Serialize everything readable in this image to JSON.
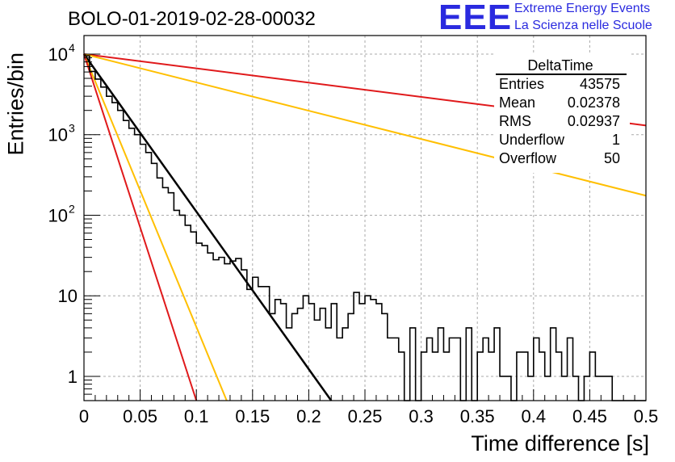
{
  "title": "BOLO-01-2019-02-28-00032",
  "logo": {
    "mark": "EEE",
    "line1": "Extreme Energy Events",
    "line2": "La Scienza nelle Scuole"
  },
  "stats_box": {
    "name": "DeltaTime",
    "rows": [
      {
        "label": "Entries",
        "value": "43575"
      },
      {
        "label": "Mean",
        "value": "0.02378"
      },
      {
        "label": "RMS",
        "value": "0.02937"
      },
      {
        "label": "Underflow",
        "value": "1"
      },
      {
        "label": "Overflow",
        "value": "50"
      }
    ]
  },
  "colors": {
    "hist": "#000000",
    "red": "#e0191b",
    "yellow": "#ffbf00",
    "fit": "#000000"
  },
  "chart_data": {
    "type": "histogram",
    "xlabel": "Time difference [s]",
    "ylabel": "Entries/bin",
    "xlim": [
      0,
      0.5
    ],
    "ylim": [
      0.5,
      17000
    ],
    "yscale": "log",
    "grid": true,
    "xticks": [
      "0",
      "0.05",
      "0.1",
      "0.15",
      "0.2",
      "0.25",
      "0.3",
      "0.35",
      "0.4",
      "0.45",
      "0.5"
    ],
    "yticks": [
      {
        "value": 1,
        "label": "1"
      },
      {
        "value": 10,
        "label": "10"
      },
      {
        "value": 100,
        "label": "10",
        "exp": "2"
      },
      {
        "value": 1000,
        "label": "10",
        "exp": "3"
      },
      {
        "value": 10000,
        "label": "10",
        "exp": "4"
      }
    ],
    "bin_width": 0.005,
    "histogram": [
      9500,
      6100,
      4900,
      3900,
      3000,
      2500,
      2000,
      1500,
      1200,
      1000,
      760,
      600,
      440,
      290,
      220,
      190,
      115,
      100,
      75,
      62,
      45,
      42,
      34,
      28,
      30,
      25,
      27,
      29,
      21,
      12,
      17,
      13,
      13,
      6,
      9,
      8,
      4,
      6,
      7,
      10,
      8,
      5,
      7,
      4,
      8,
      3,
      4,
      6,
      11,
      8,
      10,
      9,
      8,
      6,
      3,
      3,
      2,
      0,
      4,
      0,
      2,
      3,
      2,
      4,
      2,
      3,
      3,
      0,
      4,
      0,
      2,
      3,
      2,
      4,
      1,
      1,
      0,
      2,
      2,
      1,
      3,
      2,
      1,
      4,
      2,
      1,
      3,
      1,
      0,
      1,
      2,
      1,
      1,
      1,
      0,
      0,
      0,
      0,
      0,
      0
    ],
    "curves": [
      {
        "color": "red",
        "x0": 0,
        "y0": 10000,
        "x1": 0.5,
        "y1": 1300
      },
      {
        "color": "yellow",
        "x0": 0,
        "y0": 10000,
        "x1": 0.5,
        "y1": 175
      },
      {
        "color": "black",
        "x0": 0,
        "y0": 10000,
        "x1": 0.22,
        "y1": 0.5
      },
      {
        "color": "yellow",
        "x0": 0,
        "y0": 10000,
        "x1": 0.127,
        "y1": 0.5
      },
      {
        "color": "red",
        "x0": 0,
        "y0": 10000,
        "x1": 0.1,
        "y1": 0.5
      }
    ]
  }
}
